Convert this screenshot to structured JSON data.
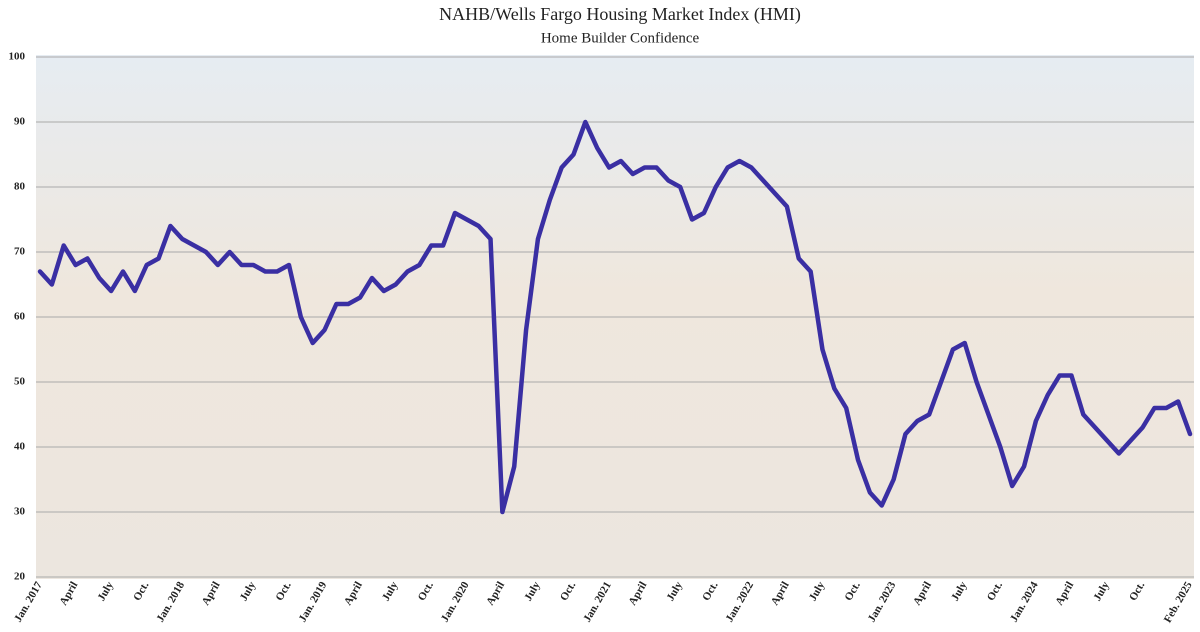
{
  "chart_data": {
    "type": "line",
    "title": "NAHB/Wells Fargo Housing Market Index (HMI)",
    "subtitle": "Home Builder Confidence",
    "categories": [
      "Jan. 2017",
      null,
      null,
      "April",
      null,
      null,
      "July",
      null,
      null,
      "Oct.",
      null,
      null,
      "Jan. 2018",
      null,
      null,
      "April",
      null,
      null,
      "July",
      null,
      null,
      "Oct.",
      null,
      null,
      "Jan. 2019",
      null,
      null,
      "April",
      null,
      null,
      "July",
      null,
      null,
      "Oct.",
      null,
      null,
      "Jan. 2020",
      null,
      null,
      "April",
      null,
      null,
      "July",
      null,
      null,
      "Oct.",
      null,
      null,
      "Jan. 2021",
      null,
      null,
      "April",
      null,
      null,
      "July",
      null,
      null,
      "Oct.",
      null,
      null,
      "Jan. 2022",
      null,
      null,
      "April",
      null,
      null,
      "July",
      null,
      null,
      "Oct.",
      null,
      null,
      "Jan. 2023",
      null,
      null,
      "April",
      null,
      null,
      "July",
      null,
      null,
      "Oct.",
      null,
      null,
      "Jan. 2024",
      null,
      null,
      "April",
      null,
      null,
      "July",
      null,
      null,
      "Oct.",
      null,
      null,
      null,
      "Feb. 2025"
    ],
    "values": [
      67,
      65,
      71,
      68,
      69,
      66,
      64,
      67,
      64,
      68,
      69,
      74,
      72,
      71,
      70,
      68,
      70,
      68,
      68,
      67,
      67,
      68,
      60,
      56,
      58,
      62,
      62,
      63,
      66,
      64,
      65,
      67,
      68,
      71,
      71,
      76,
      75,
      74,
      72,
      30,
      37,
      58,
      72,
      78,
      83,
      85,
      90,
      86,
      83,
      84,
      82,
      83,
      83,
      81,
      80,
      75,
      76,
      80,
      83,
      84,
      83,
      81,
      79,
      77,
      69,
      67,
      55,
      49,
      46,
      38,
      33,
      31,
      35,
      42,
      44,
      45,
      50,
      55,
      56,
      50,
      45,
      40,
      34,
      37,
      44,
      48,
      51,
      51,
      45,
      43,
      41,
      39,
      41,
      43,
      46,
      46,
      47,
      42
    ],
    "color": "#3a2fa3",
    "ylim": [
      20,
      100
    ],
    "yticks": [
      20,
      30,
      40,
      50,
      60,
      70,
      80,
      90,
      100
    ],
    "grid": true
  }
}
